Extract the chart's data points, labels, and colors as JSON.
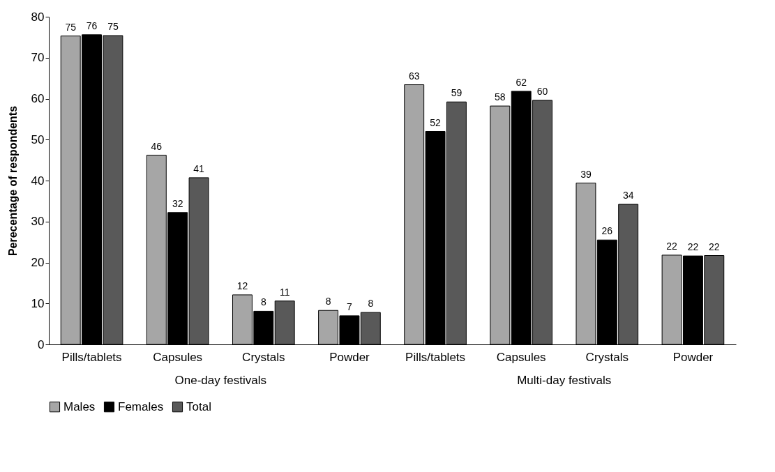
{
  "chart_data": {
    "type": "bar",
    "ylabel": "Perecentage of respondents",
    "categories": [
      "Pills/tablets",
      "Capsules",
      "Crystals",
      "Powder",
      "Pills/tablets",
      "Capsules",
      "Crystals",
      "Powder"
    ],
    "annotations": [
      "One-day festivals",
      "Multi-day festivals"
    ],
    "series": [
      {
        "name": "Males",
        "color": "#a6a6a6",
        "values": [
          75.3,
          46.2,
          12.1,
          8.3,
          63.4,
          58.2,
          39.4,
          21.8
        ],
        "value_labels": [
          "75",
          "46",
          "12",
          "8",
          "63",
          "58",
          "39",
          "22"
        ]
      },
      {
        "name": "Females",
        "color": "#000000",
        "values": [
          75.6,
          32.2,
          8.1,
          7.0,
          52.0,
          61.8,
          25.5,
          21.6
        ],
        "value_labels": [
          "76",
          "32",
          "8",
          "7",
          "52",
          "62",
          "26",
          "22"
        ]
      },
      {
        "name": "Total",
        "color": "#595959",
        "values": [
          75.4,
          40.7,
          10.6,
          7.8,
          59.2,
          59.6,
          34.2,
          21.7
        ],
        "value_labels": [
          "75",
          "41",
          "11",
          "8",
          "59",
          "60",
          "34",
          "22"
        ]
      }
    ],
    "ylim": [
      0,
      80
    ],
    "yticks": [
      0,
      10,
      20,
      30,
      40,
      50,
      60,
      70,
      80
    ],
    "grid": false,
    "legend": "bottom"
  }
}
